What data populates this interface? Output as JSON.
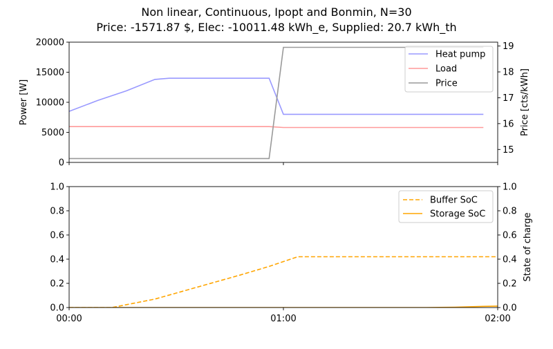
{
  "chart_data": {
    "title_line1": "Non linear, Continuous, Ipopt and Bonmin, N=30",
    "title_line2": "Price: -1571.87 $, Elec: -10011.48 kWh_e, Supplied: 20.7 kWh_th",
    "x_ticks": [
      "00:00",
      "01:00",
      "02:00"
    ],
    "x_range_minutes": [
      0,
      120
    ],
    "top": {
      "type": "line",
      "ylabel_left": "Power [W]",
      "ylabel_right": "Price [cts/kWh]",
      "ylim_left": [
        0,
        20000
      ],
      "ylim_right": [
        14.5,
        19.15
      ],
      "yticks_left": [
        "0",
        "5000",
        "10000",
        "15000",
        "20000"
      ],
      "yticks_right": [
        "15",
        "16",
        "17",
        "18",
        "19"
      ],
      "legend_placement": "top-right",
      "series": [
        {
          "name": "Heat pump",
          "color": "#9999ff",
          "axis": "left",
          "x": [
            0,
            8,
            16,
            24,
            28,
            32,
            36,
            40,
            44,
            48,
            52,
            56,
            60,
            64,
            68,
            72,
            76,
            80,
            84,
            88,
            92,
            96,
            100,
            104,
            108,
            112,
            116
          ],
          "y": [
            8500,
            10300,
            11900,
            13800,
            14000,
            14000,
            14000,
            14000,
            14000,
            14000,
            14000,
            14000,
            8000,
            8000,
            8000,
            8000,
            8000,
            8000,
            8000,
            8000,
            8000,
            8000,
            8000,
            8000,
            8000,
            8000,
            8000
          ]
        },
        {
          "name": "Load",
          "color": "#ff9999",
          "axis": "left",
          "x": [
            0,
            56,
            60,
            116
          ],
          "y": [
            5950,
            5950,
            5800,
            5800
          ]
        },
        {
          "name": "Price",
          "color": "#999999",
          "axis": "right",
          "x": [
            0,
            56,
            60,
            116
          ],
          "y": [
            14.65,
            14.65,
            18.95,
            18.95
          ]
        }
      ]
    },
    "bottom": {
      "type": "line",
      "ylabel_right": "State of charge",
      "ylim": [
        0,
        1
      ],
      "yticks": [
        "0.0",
        "0.2",
        "0.4",
        "0.6",
        "0.8",
        "1.0"
      ],
      "legend_placement": "top-right",
      "series": [
        {
          "name": "Buffer SoC",
          "color": "#ffa500",
          "dash": true,
          "x": [
            0,
            12,
            24,
            36,
            48,
            56,
            60,
            64,
            120
          ],
          "y": [
            0,
            0,
            0.07,
            0.17,
            0.27,
            0.34,
            0.38,
            0.42,
            0.42
          ]
        },
        {
          "name": "Storage SoC",
          "color": "#ffa500",
          "dash": false,
          "x": [
            0,
            100,
            108,
            116,
            120
          ],
          "y": [
            0,
            0,
            0.003,
            0.01,
            0.012
          ]
        }
      ]
    }
  }
}
